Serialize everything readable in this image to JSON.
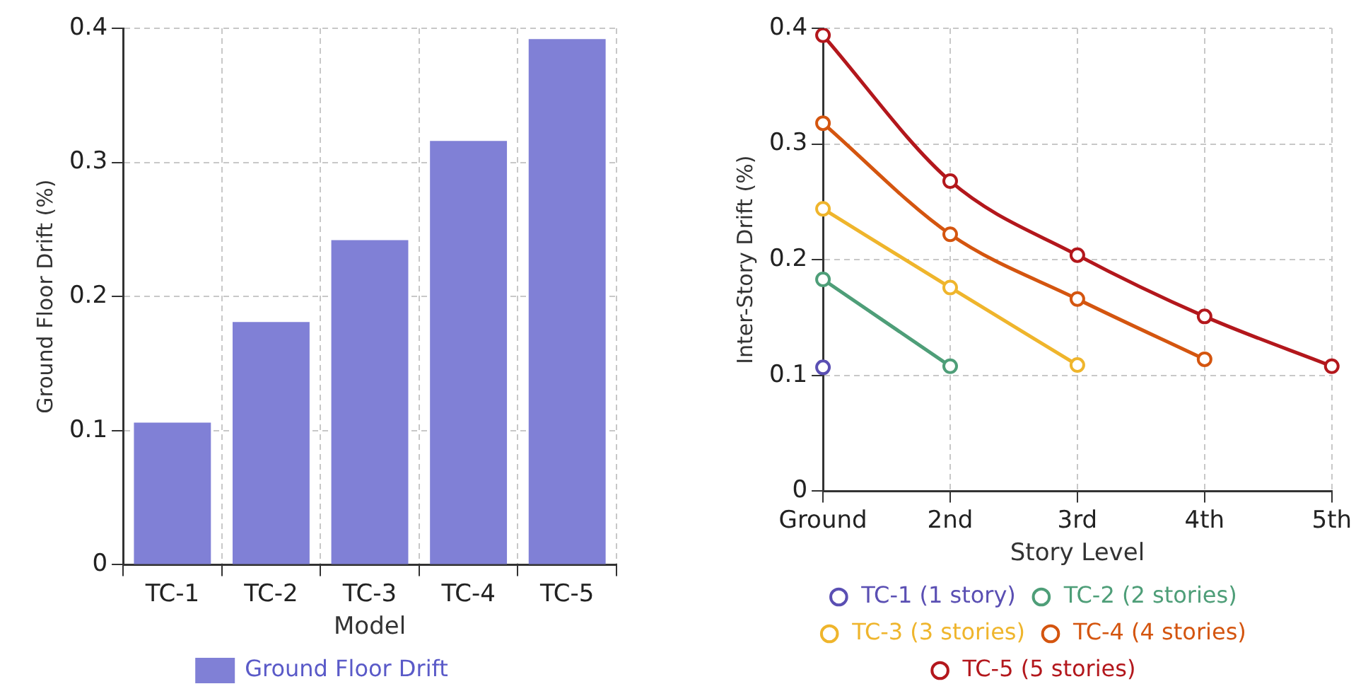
{
  "chart_data": [
    {
      "type": "bar",
      "xlabel": "Model",
      "ylabel": "Ground Floor Drift (%)",
      "categories": [
        "TC-1",
        "TC-2",
        "TC-3",
        "TC-4",
        "TC-5"
      ],
      "series": [
        {
          "name": "Ground Floor Drift",
          "color": "#8080d6",
          "values": [
            0.106,
            0.181,
            0.242,
            0.316,
            0.392
          ]
        }
      ],
      "ylim": [
        0,
        0.4
      ],
      "yticks": [
        0,
        0.1,
        0.2,
        0.3,
        0.4
      ],
      "grid": true,
      "legend": "bottom"
    },
    {
      "type": "line",
      "xlabel": "Story Level",
      "ylabel": "Inter-Story Drift (%)",
      "categories": [
        "Ground",
        "2nd",
        "3rd",
        "4th",
        "5th"
      ],
      "series": [
        {
          "name": "TC-1 (1 story)",
          "color": "#5a4fb3",
          "values": [
            0.107,
            null,
            null,
            null,
            null
          ]
        },
        {
          "name": "TC-2 (2 stories)",
          "color": "#4e9e78",
          "values": [
            0.183,
            0.108,
            null,
            null,
            null
          ]
        },
        {
          "name": "TC-3 (3 stories)",
          "color": "#efb52c",
          "values": [
            0.244,
            0.176,
            0.109,
            null,
            null
          ]
        },
        {
          "name": "TC-4 (4 stories)",
          "color": "#d4550f",
          "values": [
            0.318,
            0.222,
            0.166,
            0.114,
            null
          ]
        },
        {
          "name": "TC-5 (5 stories)",
          "color": "#b3171c",
          "values": [
            0.394,
            0.268,
            0.204,
            0.151,
            0.108
          ]
        }
      ],
      "ylim": [
        0,
        0.4
      ],
      "yticks": [
        0,
        0.1,
        0.2,
        0.3,
        0.4
      ],
      "grid": true,
      "legend": "bottom",
      "marker": "circle"
    }
  ]
}
